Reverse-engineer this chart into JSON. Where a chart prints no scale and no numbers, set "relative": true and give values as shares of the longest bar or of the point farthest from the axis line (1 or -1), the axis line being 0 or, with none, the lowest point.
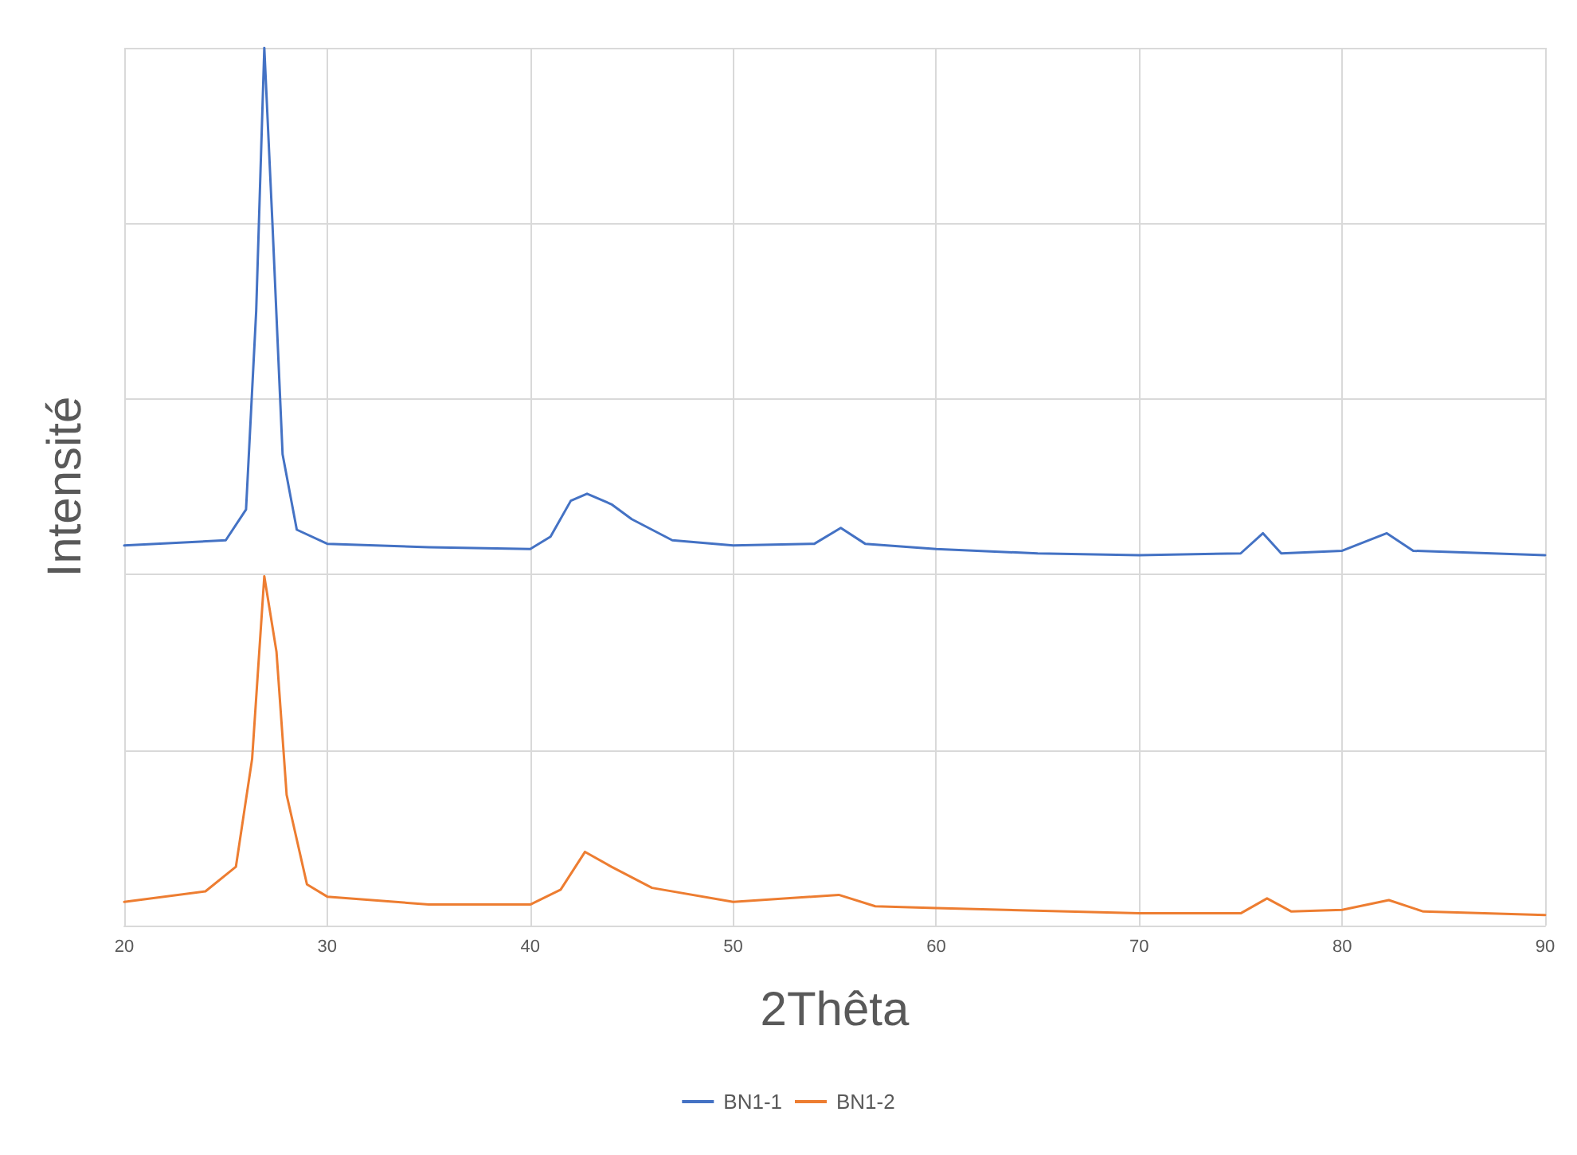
{
  "chart_data": {
    "type": "line",
    "xlabel": "2Thêta",
    "ylabel": "Intensité",
    "relative": true,
    "xlim": [
      20,
      90
    ],
    "xticks": [
      20,
      30,
      40,
      50,
      60,
      70,
      80,
      90
    ],
    "grid": true,
    "legend": "bottom",
    "marker": "none",
    "line_style": "solid",
    "series": [
      {
        "name": "BN1-1",
        "color": "#4472c4",
        "x": [
          20,
          25,
          26,
          26.5,
          26.9,
          27.3,
          27.8,
          28.5,
          30,
          35,
          40,
          41,
          42,
          42.8,
          44,
          45,
          47,
          50,
          54,
          55.3,
          56.5,
          60,
          65,
          70,
          75,
          76.1,
          77,
          80,
          82.2,
          83.5,
          90
        ],
        "values": [
          0.433,
          0.439,
          0.474,
          0.7,
          1,
          0.8,
          0.537,
          0.451,
          0.435,
          0.431,
          0.429,
          0.443,
          0.484,
          0.492,
          0.48,
          0.463,
          0.439,
          0.433,
          0.435,
          0.453,
          0.435,
          0.429,
          0.424,
          0.422,
          0.424,
          0.447,
          0.424,
          0.427,
          0.447,
          0.427,
          0.422
        ]
      },
      {
        "name": "BN1-2",
        "color": "#ed7d31",
        "x": [
          20,
          24,
          25.5,
          26.3,
          26.9,
          27.5,
          28,
          29,
          30,
          35,
          40,
          41.5,
          42.7,
          44,
          46,
          50,
          55.2,
          57,
          60,
          70,
          75,
          76.3,
          77.5,
          80,
          82.3,
          84,
          90
        ],
        "values": [
          0.027,
          0.039,
          0.067,
          0.19,
          0.398,
          0.312,
          0.149,
          0.047,
          0.033,
          0.024,
          0.024,
          0.041,
          0.084,
          0.067,
          0.043,
          0.027,
          0.035,
          0.022,
          0.02,
          0.014,
          0.014,
          0.031,
          0.016,
          0.018,
          0.029,
          0.016,
          0.012
        ]
      }
    ]
  }
}
